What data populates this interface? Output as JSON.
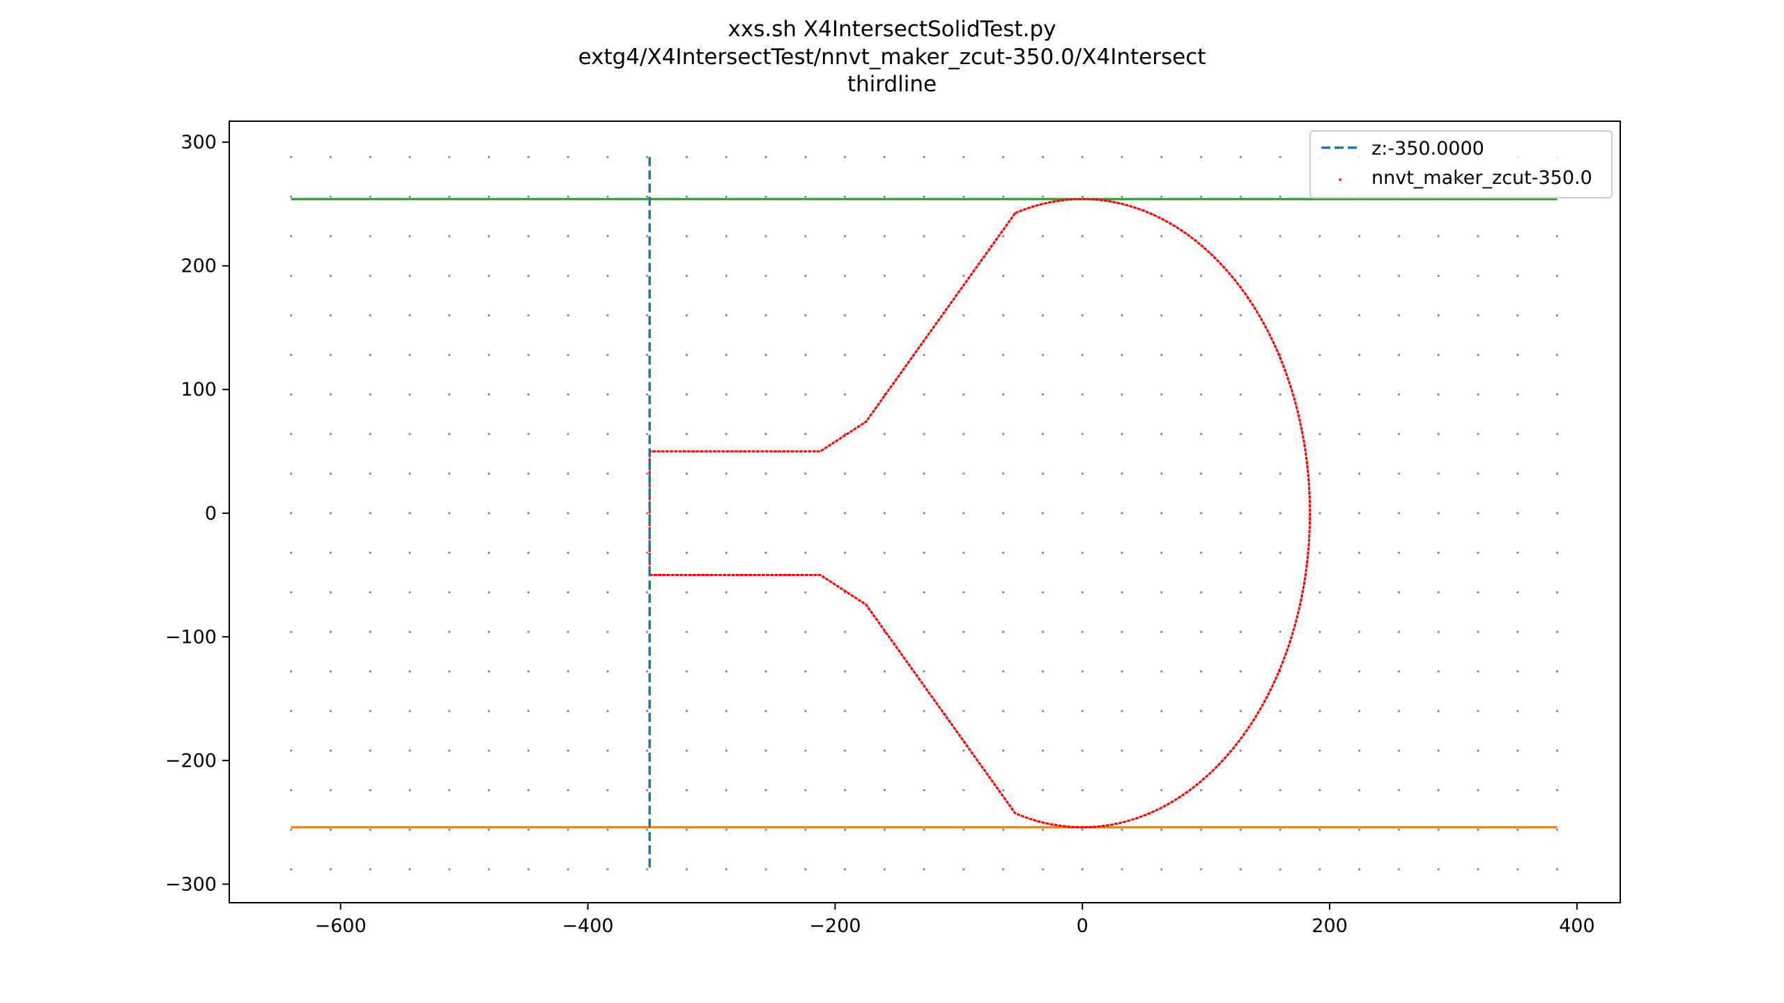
{
  "chart_data": {
    "type": "scatter",
    "title_lines": [
      "xxs.sh X4IntersectSolidTest.py",
      "extg4/X4IntersectTest/nnvt_maker_zcut-350.0/X4Intersect",
      "thirdline"
    ],
    "xlabel": "",
    "ylabel": "",
    "xlim": [
      -690,
      435
    ],
    "ylim": [
      -315,
      317
    ],
    "xticks": [
      -600,
      -400,
      -200,
      0,
      200,
      400
    ],
    "yticks": [
      -300,
      -200,
      -100,
      0,
      100,
      200,
      300
    ],
    "xtick_labels": [
      "−600",
      "−400",
      "−200",
      "0",
      "200",
      "400"
    ],
    "ytick_labels": [
      "−300",
      "−200",
      "−100",
      "0",
      "100",
      "200",
      "300"
    ],
    "grid": false,
    "legend": {
      "placement": "top-right",
      "entries": [
        {
          "label": "z:-350.0000",
          "style": "dashed-line",
          "color": "#1f77b4"
        },
        {
          "label": "nnvt_maker_zcut-350.0",
          "style": "point",
          "color": "#ff0000"
        }
      ]
    },
    "series": [
      {
        "name": "z:-350.0000",
        "kind": "dashed-vertical-line",
        "color": "#1f77b4",
        "x": -350,
        "y_range": [
          -288,
          288
        ]
      },
      {
        "kind": "horizontal-line",
        "color": "#2ca02c",
        "y": 254,
        "x_range": [
          -640,
          384
        ]
      },
      {
        "kind": "horizontal-line",
        "color": "#ff7f0e",
        "y": -254,
        "x_range": [
          -640,
          384
        ]
      },
      {
        "kind": "point-grid",
        "color": "#888888",
        "x_range": [
          -640,
          384
        ],
        "x_step": 32,
        "y_range": [
          -288,
          288
        ],
        "y_step": 32
      },
      {
        "name": "nnvt_maker_zcut-350.0",
        "kind": "intersect-outline",
        "color": "#ff0000",
        "ellipse": {
          "a": 184,
          "b": 254,
          "neck_angle_deg": 107.2
        },
        "neck_points": [
          [
            -175,
            74
          ],
          [
            -212,
            50
          ],
          [
            -350,
            50
          ],
          [
            -350,
            -50
          ],
          [
            -212,
            -50
          ],
          [
            -175,
            -74
          ]
        ]
      }
    ]
  }
}
